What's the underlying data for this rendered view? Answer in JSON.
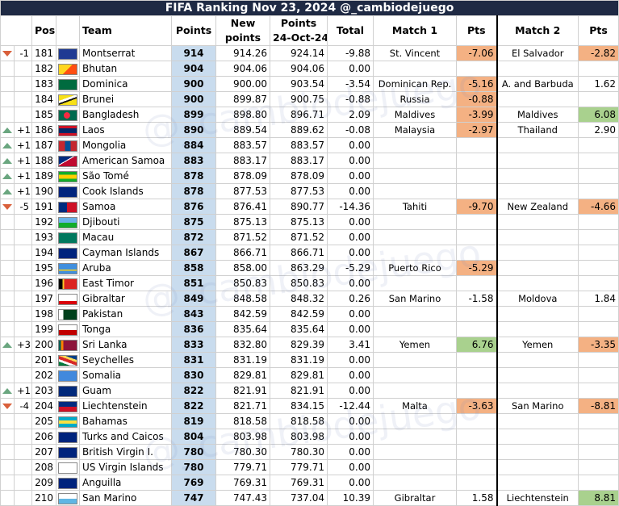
{
  "title": "FIFA Ranking Nov 23, 2024 @_cambiodejuego",
  "watermark": "@_cambiodejuego",
  "headers": {
    "pos": "Pos.",
    "team": "Team",
    "points": "Points",
    "new_points_1": "New",
    "new_points_2": "points",
    "old_points_1": "Points",
    "old_points_2": "24-Oct-24",
    "total": "Total",
    "match1": "Match 1",
    "pts1": "Pts",
    "match2": "Match 2",
    "pts2": "Pts"
  },
  "colors": {
    "up": "#6aa67f",
    "down": "#d9603b",
    "negative_cell": "#f4b183",
    "positive_cell": "#a9d18e",
    "points_cell": "#c9dcee",
    "title_bg": "#1f2a44"
  },
  "rows": [
    {
      "dir": "down",
      "chg": "-1",
      "pos": "181",
      "flag": "montserrat-flag",
      "team": "Montserrat",
      "points": "914",
      "new": "914.26",
      "old": "924.14",
      "total": "-9.88",
      "m1": "St. Vincent",
      "p1": "-7.06",
      "p1c": "neg",
      "m2": "El Salvador",
      "p2": "-2.82",
      "p2c": "neg"
    },
    {
      "dir": "",
      "chg": "",
      "pos": "182",
      "flag": "bhutan-flag",
      "team": "Bhutan",
      "points": "904",
      "new": "904.06",
      "old": "904.06",
      "total": "0.00",
      "m1": "",
      "p1": "",
      "p1c": "",
      "m2": "",
      "p2": "",
      "p2c": ""
    },
    {
      "dir": "",
      "chg": "",
      "pos": "183",
      "flag": "dominica-flag",
      "team": "Dominica",
      "points": "900",
      "new": "900.00",
      "old": "903.54",
      "total": "-3.54",
      "m1": "Dominican Rep.",
      "p1": "-5.16",
      "p1c": "neg",
      "m2": "A. and Barbuda",
      "p2": "1.62",
      "p2c": ""
    },
    {
      "dir": "",
      "chg": "",
      "pos": "184",
      "flag": "brunei-flag",
      "team": "Brunei",
      "points": "900",
      "new": "899.87",
      "old": "900.75",
      "total": "-0.88",
      "m1": "Russia",
      "p1": "-0.88",
      "p1c": "neg",
      "m2": "",
      "p2": "",
      "p2c": ""
    },
    {
      "dir": "",
      "chg": "",
      "pos": "185",
      "flag": "bangladesh-flag",
      "team": "Bangladesh",
      "points": "899",
      "new": "898.80",
      "old": "896.71",
      "total": "2.09",
      "m1": "Maldives",
      "p1": "-3.99",
      "p1c": "neg",
      "m2": "Maldives",
      "p2": "6.08",
      "p2c": "pos"
    },
    {
      "dir": "up",
      "chg": "+1",
      "pos": "186",
      "flag": "laos-flag",
      "team": "Laos",
      "points": "890",
      "new": "889.54",
      "old": "889.62",
      "total": "-0.08",
      "m1": "Malaysia",
      "p1": "-2.97",
      "p1c": "neg",
      "m2": "Thailand",
      "p2": "2.90",
      "p2c": ""
    },
    {
      "dir": "up",
      "chg": "+1",
      "pos": "187",
      "flag": "mongolia-flag",
      "team": "Mongolia",
      "points": "884",
      "new": "883.57",
      "old": "883.57",
      "total": "0.00",
      "m1": "",
      "p1": "",
      "p1c": "",
      "m2": "",
      "p2": "",
      "p2c": ""
    },
    {
      "dir": "up",
      "chg": "+1",
      "pos": "188",
      "flag": "american-samoa-flag",
      "team": "American Samoa",
      "points": "883",
      "new": "883.17",
      "old": "883.17",
      "total": "0.00",
      "m1": "",
      "p1": "",
      "p1c": "",
      "m2": "",
      "p2": "",
      "p2c": ""
    },
    {
      "dir": "up",
      "chg": "+1",
      "pos": "189",
      "flag": "sao-tome-flag",
      "team": "São Tomé",
      "points": "878",
      "new": "878.09",
      "old": "878.09",
      "total": "0.00",
      "m1": "",
      "p1": "",
      "p1c": "",
      "m2": "",
      "p2": "",
      "p2c": ""
    },
    {
      "dir": "up",
      "chg": "+1",
      "pos": "190",
      "flag": "cook-islands-flag",
      "team": "Cook Islands",
      "points": "878",
      "new": "877.53",
      "old": "877.53",
      "total": "0.00",
      "m1": "",
      "p1": "",
      "p1c": "",
      "m2": "",
      "p2": "",
      "p2c": ""
    },
    {
      "dir": "down",
      "chg": "-5",
      "pos": "191",
      "flag": "samoa-flag",
      "team": "Samoa",
      "points": "876",
      "new": "876.41",
      "old": "890.77",
      "total": "-14.36",
      "m1": "Tahiti",
      "p1": "-9.70",
      "p1c": "neg",
      "m2": "New Zealand",
      "p2": "-4.66",
      "p2c": "neg"
    },
    {
      "dir": "",
      "chg": "",
      "pos": "192",
      "flag": "djibouti-flag",
      "team": "Djibouti",
      "points": "875",
      "new": "875.13",
      "old": "875.13",
      "total": "0.00",
      "m1": "",
      "p1": "",
      "p1c": "",
      "m2": "",
      "p2": "",
      "p2c": ""
    },
    {
      "dir": "",
      "chg": "",
      "pos": "193",
      "flag": "macau-flag",
      "team": "Macau",
      "points": "872",
      "new": "871.52",
      "old": "871.52",
      "total": "0.00",
      "m1": "",
      "p1": "",
      "p1c": "",
      "m2": "",
      "p2": "",
      "p2c": ""
    },
    {
      "dir": "",
      "chg": "",
      "pos": "194",
      "flag": "cayman-islands-flag",
      "team": "Cayman Islands",
      "points": "867",
      "new": "866.71",
      "old": "866.71",
      "total": "0.00",
      "m1": "",
      "p1": "",
      "p1c": "",
      "m2": "",
      "p2": "",
      "p2c": ""
    },
    {
      "dir": "",
      "chg": "",
      "pos": "195",
      "flag": "aruba-flag",
      "team": "Aruba",
      "points": "858",
      "new": "858.00",
      "old": "863.29",
      "total": "-5.29",
      "m1": "Puerto Rico",
      "p1": "-5.29",
      "p1c": "neg",
      "m2": "",
      "p2": "",
      "p2c": ""
    },
    {
      "dir": "",
      "chg": "",
      "pos": "196",
      "flag": "east-timor-flag",
      "team": "East Timor",
      "points": "851",
      "new": "850.83",
      "old": "850.83",
      "total": "0.00",
      "m1": "",
      "p1": "",
      "p1c": "",
      "m2": "",
      "p2": "",
      "p2c": ""
    },
    {
      "dir": "",
      "chg": "",
      "pos": "197",
      "flag": "gibraltar-flag",
      "team": "Gibraltar",
      "points": "849",
      "new": "848.58",
      "old": "848.32",
      "total": "0.26",
      "m1": "San Marino",
      "p1": "-1.58",
      "p1c": "",
      "m2": "Moldova",
      "p2": "1.84",
      "p2c": ""
    },
    {
      "dir": "",
      "chg": "",
      "pos": "198",
      "flag": "pakistan-flag",
      "team": "Pakistan",
      "points": "843",
      "new": "842.59",
      "old": "842.59",
      "total": "0.00",
      "m1": "",
      "p1": "",
      "p1c": "",
      "m2": "",
      "p2": "",
      "p2c": ""
    },
    {
      "dir": "",
      "chg": "",
      "pos": "199",
      "flag": "tonga-flag",
      "team": "Tonga",
      "points": "836",
      "new": "835.64",
      "old": "835.64",
      "total": "0.00",
      "m1": "",
      "p1": "",
      "p1c": "",
      "m2": "",
      "p2": "",
      "p2c": ""
    },
    {
      "dir": "up",
      "chg": "+3",
      "pos": "200",
      "flag": "sri-lanka-flag",
      "team": "Sri Lanka",
      "points": "833",
      "new": "832.80",
      "old": "829.39",
      "total": "3.41",
      "m1": "Yemen",
      "p1": "6.76",
      "p1c": "pos",
      "m2": "Yemen",
      "p2": "-3.35",
      "p2c": "neg"
    },
    {
      "dir": "",
      "chg": "",
      "pos": "201",
      "flag": "seychelles-flag",
      "team": "Seychelles",
      "points": "831",
      "new": "831.19",
      "old": "831.19",
      "total": "0.00",
      "m1": "",
      "p1": "",
      "p1c": "",
      "m2": "",
      "p2": "",
      "p2c": ""
    },
    {
      "dir": "",
      "chg": "",
      "pos": "202",
      "flag": "somalia-flag",
      "team": "Somalia",
      "points": "830",
      "new": "829.81",
      "old": "829.81",
      "total": "0.00",
      "m1": "",
      "p1": "",
      "p1c": "",
      "m2": "",
      "p2": "",
      "p2c": ""
    },
    {
      "dir": "up",
      "chg": "+1",
      "pos": "203",
      "flag": "guam-flag",
      "team": "Guam",
      "points": "822",
      "new": "821.91",
      "old": "821.91",
      "total": "0.00",
      "m1": "",
      "p1": "",
      "p1c": "",
      "m2": "",
      "p2": "",
      "p2c": ""
    },
    {
      "dir": "down",
      "chg": "-4",
      "pos": "204",
      "flag": "liechtenstein-flag",
      "team": "Liechtenstein",
      "points": "822",
      "new": "821.71",
      "old": "834.15",
      "total": "-12.44",
      "m1": "Malta",
      "p1": "-3.63",
      "p1c": "neg",
      "m2": "San Marino",
      "p2": "-8.81",
      "p2c": "neg"
    },
    {
      "dir": "",
      "chg": "",
      "pos": "205",
      "flag": "bahamas-flag",
      "team": "Bahamas",
      "points": "819",
      "new": "818.58",
      "old": "818.58",
      "total": "0.00",
      "m1": "",
      "p1": "",
      "p1c": "",
      "m2": "",
      "p2": "",
      "p2c": ""
    },
    {
      "dir": "",
      "chg": "",
      "pos": "206",
      "flag": "turks-and-caicos-flag",
      "team": "Turks and Caicos",
      "points": "804",
      "new": "803.98",
      "old": "803.98",
      "total": "0.00",
      "m1": "",
      "p1": "",
      "p1c": "",
      "m2": "",
      "p2": "",
      "p2c": ""
    },
    {
      "dir": "",
      "chg": "",
      "pos": "207",
      "flag": "british-virgin-islands-flag",
      "team": "British Virgin I.",
      "points": "780",
      "new": "780.30",
      "old": "780.30",
      "total": "0.00",
      "m1": "",
      "p1": "",
      "p1c": "",
      "m2": "",
      "p2": "",
      "p2c": ""
    },
    {
      "dir": "",
      "chg": "",
      "pos": "208",
      "flag": "us-virgin-islands-flag",
      "team": "US Virgin Islands",
      "points": "780",
      "new": "779.71",
      "old": "779.71",
      "total": "0.00",
      "m1": "",
      "p1": "",
      "p1c": "",
      "m2": "",
      "p2": "",
      "p2c": ""
    },
    {
      "dir": "",
      "chg": "",
      "pos": "209",
      "flag": "anguilla-flag",
      "team": "Anguilla",
      "points": "769",
      "new": "769.31",
      "old": "769.31",
      "total": "0.00",
      "m1": "",
      "p1": "",
      "p1c": "",
      "m2": "",
      "p2": "",
      "p2c": ""
    },
    {
      "dir": "",
      "chg": "",
      "pos": "210",
      "flag": "san-marino-flag",
      "team": "San Marino",
      "points": "747",
      "new": "747.43",
      "old": "737.04",
      "total": "10.39",
      "m1": "Gibraltar",
      "p1": "1.58",
      "p1c": "",
      "m2": "Liechtenstein",
      "p2": "8.81",
      "p2c": "pos"
    }
  ]
}
